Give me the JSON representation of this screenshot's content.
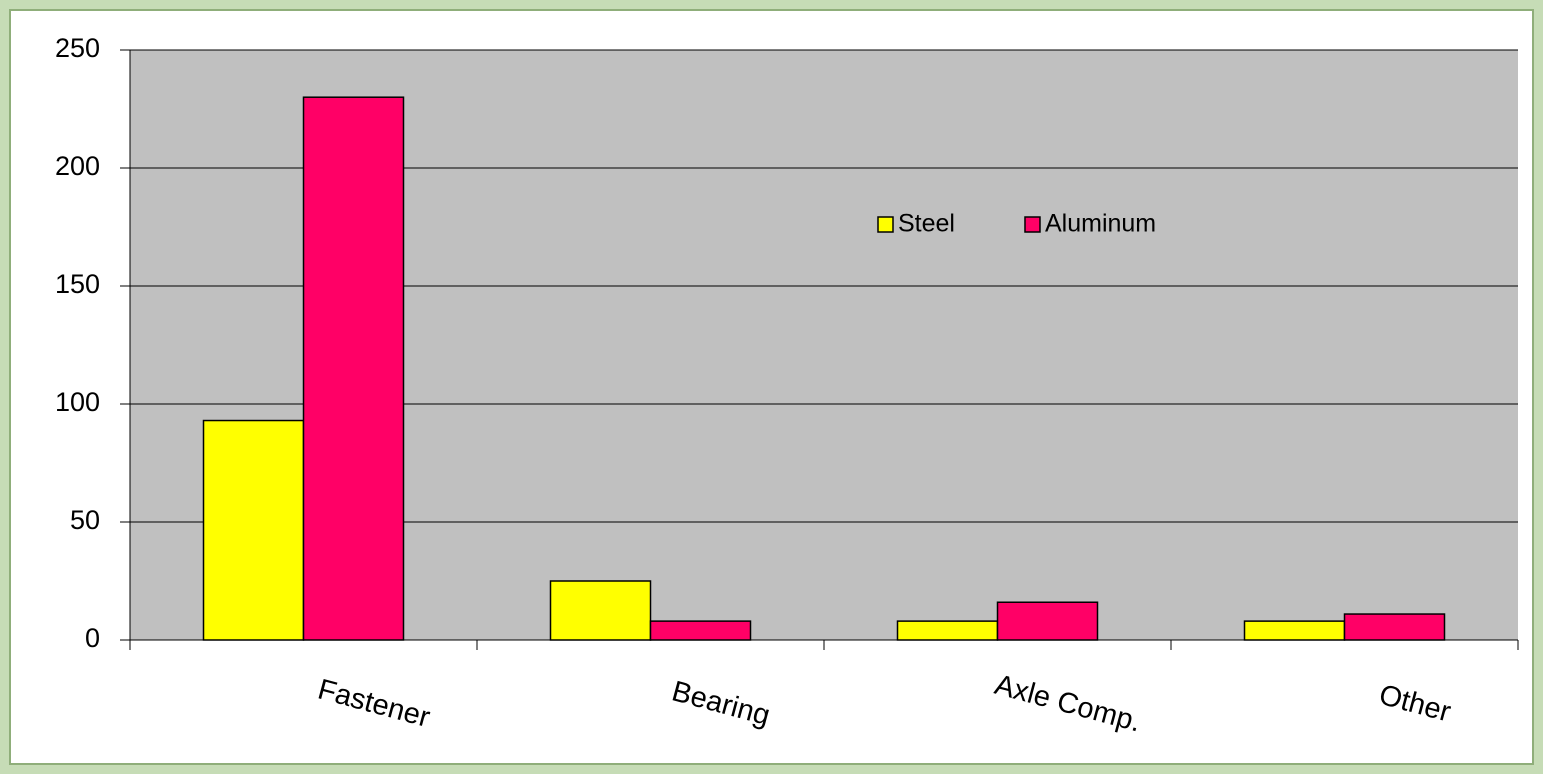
{
  "chart_data": {
    "type": "bar",
    "categories": [
      "Fastener",
      "Bearing",
      "Axle Comp.",
      "Other"
    ],
    "series": [
      {
        "name": "Steel",
        "color": "#ffff00",
        "values": [
          93,
          25,
          8,
          8
        ]
      },
      {
        "name": "Aluminum",
        "color": "#ff0066",
        "values": [
          230,
          8,
          16,
          11
        ]
      }
    ],
    "ylim": [
      0,
      250
    ],
    "yticks": [
      0,
      50,
      100,
      150,
      200,
      250
    ],
    "grid": true,
    "legend": "top-right",
    "plot_background": "#c0c0c0"
  }
}
